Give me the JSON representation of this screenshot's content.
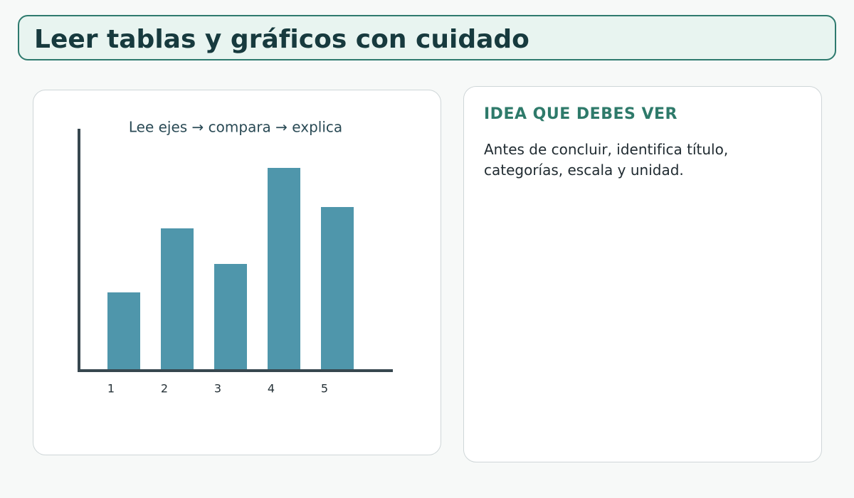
{
  "header": {
    "title": "Leer tablas y gráficos con cuidado"
  },
  "chart_data": {
    "type": "bar",
    "title": "Lee ejes → compara → explica",
    "categories": [
      "1",
      "2",
      "3",
      "4",
      "5"
    ],
    "values": [
      11,
      20,
      15,
      28.5,
      23
    ],
    "color": "#4f96ab",
    "ylim": [
      0,
      34
    ]
  },
  "idea": {
    "heading": "IDEA QUE DEBES VER",
    "text": "Antes de concluir, identifica título, categorías, escala y unidad."
  }
}
